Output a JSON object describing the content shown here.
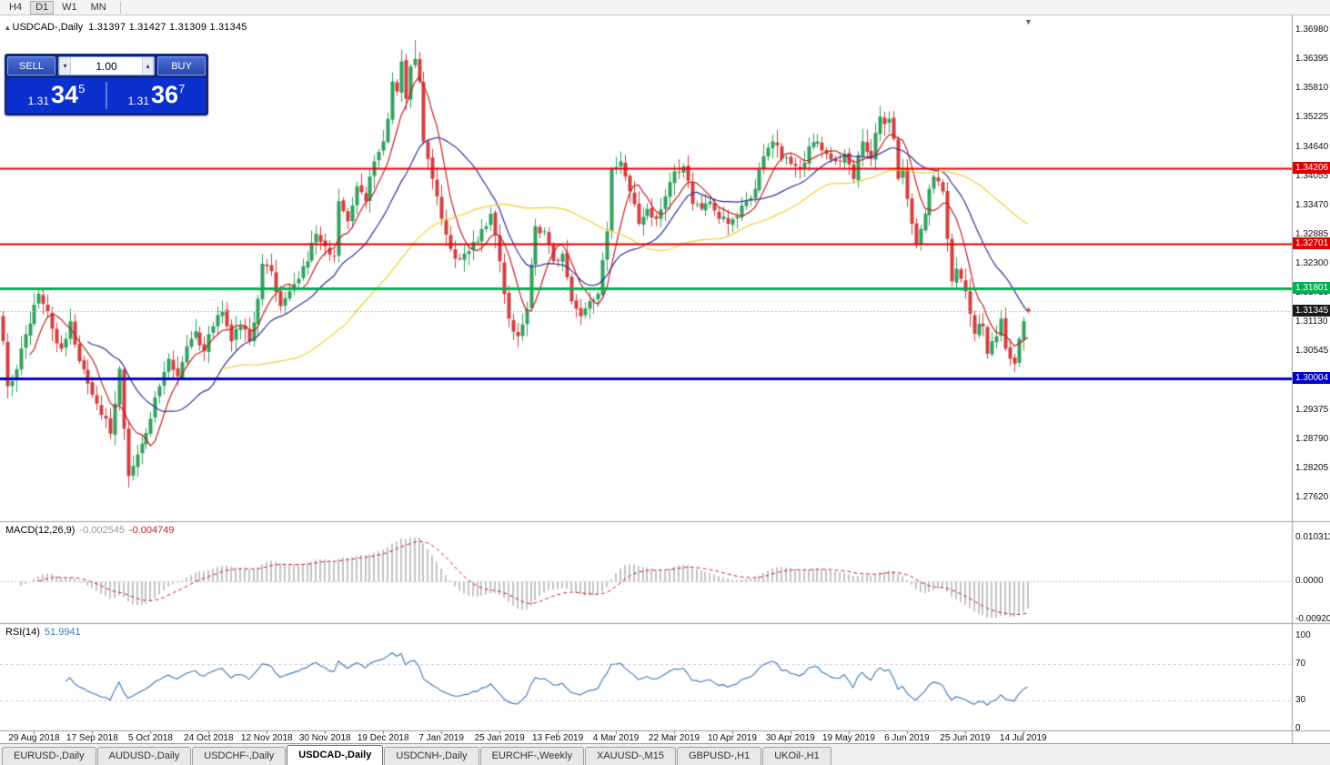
{
  "toolbar": {
    "periods": [
      {
        "label": "H4",
        "active": false
      },
      {
        "label": "D1",
        "active": true
      },
      {
        "label": "W1",
        "active": false
      },
      {
        "label": "MN",
        "active": false
      }
    ]
  },
  "icons": {
    "collapse": "▴",
    "volume_up": "▴",
    "volume_down": "▾",
    "shift_marker": "▼"
  },
  "chart_header": {
    "symbol": "USDCAD-,Daily",
    "ohlc_text": "1.31397 1.31427 1.31309 1.31345"
  },
  "trade_panel": {
    "sell_label": "SELL",
    "buy_label": "BUY",
    "volume": "1.00",
    "sell_price": {
      "prefix": "1.31",
      "big": "34",
      "sup": "5"
    },
    "buy_price": {
      "prefix": "1.31",
      "big": "36",
      "sup": "7"
    }
  },
  "chart_data": {
    "type": "candlestick",
    "title": "USDCAD-,Daily",
    "current_ohlc": {
      "open": 1.31397,
      "high": 1.31427,
      "low": 1.31309,
      "close": 1.31345
    },
    "up_color": "#33a05f",
    "down_color": "#cf4040",
    "candle_count": 230,
    "y_range": {
      "top": 1.3698,
      "bottom": 1.2762
    },
    "y_ticks": [
      "1.36980",
      "1.36395",
      "1.35810",
      "1.35225",
      "1.34640",
      "1.34055",
      "1.33470",
      "1.32885",
      "1.32300",
      "1.31715",
      "1.31130",
      "1.30545",
      "1.29960",
      "1.29375",
      "1.28790",
      "1.28205",
      "1.27620"
    ],
    "x_labels": [
      "29 Aug 2018",
      "17 Sep 2018",
      "5 Oct 2018",
      "24 Oct 2018",
      "12 Nov 2018",
      "30 Nov 2018",
      "19 Dec 2018",
      "7 Jan 2019",
      "25 Jan 2019",
      "13 Feb 2019",
      "4 Mar 2019",
      "22 Mar 2019",
      "10 Apr 2019",
      "30 Apr 2019",
      "19 May 2019",
      "6 Jun 2019",
      "25 Jun 2019",
      "14 Jul 2019"
    ],
    "x_label_first_index": 7,
    "x_label_step": 13,
    "close_waypoints": [
      [
        0,
        1.3075
      ],
      [
        1,
        1.2985
      ],
      [
        2,
        1.2995
      ],
      [
        4,
        1.306
      ],
      [
        6,
        1.311
      ],
      [
        8,
        1.317
      ],
      [
        9,
        1.315
      ],
      [
        11,
        1.31
      ],
      [
        13,
        1.306
      ],
      [
        15,
        1.3115
      ],
      [
        17,
        1.3035
      ],
      [
        19,
        1.299
      ],
      [
        21,
        1.295
      ],
      [
        23,
        1.292
      ],
      [
        24,
        1.289
      ],
      [
        25,
        1.295
      ],
      [
        26,
        1.302
      ],
      [
        27,
        1.29
      ],
      [
        28,
        1.2805
      ],
      [
        29,
        1.2825
      ],
      [
        31,
        1.287
      ],
      [
        33,
        1.292
      ],
      [
        35,
        1.2985
      ],
      [
        37,
        1.304
      ],
      [
        39,
        1.3005
      ],
      [
        41,
        1.3065
      ],
      [
        43,
        1.3095
      ],
      [
        45,
        1.3055
      ],
      [
        47,
        1.3105
      ],
      [
        49,
        1.3135
      ],
      [
        51,
        1.3075
      ],
      [
        53,
        1.3105
      ],
      [
        55,
        1.3075
      ],
      [
        57,
        1.316
      ],
      [
        58,
        1.323
      ],
      [
        60,
        1.3215
      ],
      [
        62,
        1.3145
      ],
      [
        64,
        1.3175
      ],
      [
        66,
        1.32
      ],
      [
        68,
        1.3235
      ],
      [
        70,
        1.329
      ],
      [
        72,
        1.3265
      ],
      [
        74,
        1.3245
      ],
      [
        75,
        1.3355
      ],
      [
        77,
        1.3315
      ],
      [
        79,
        1.3385
      ],
      [
        81,
        1.3355
      ],
      [
        83,
        1.3435
      ],
      [
        85,
        1.3475
      ],
      [
        86,
        1.352
      ],
      [
        87,
        1.3595
      ],
      [
        88,
        1.3575
      ],
      [
        89,
        1.3635
      ],
      [
        90,
        1.356
      ],
      [
        91,
        1.3625
      ],
      [
        92,
        1.364
      ],
      [
        93,
        1.3595
      ],
      [
        94,
        1.3475
      ],
      [
        95,
        1.344
      ],
      [
        96,
        1.34
      ],
      [
        97,
        1.3365
      ],
      [
        98,
        1.332
      ],
      [
        100,
        1.326
      ],
      [
        102,
        1.324
      ],
      [
        104,
        1.3255
      ],
      [
        106,
        1.3275
      ],
      [
        108,
        1.3305
      ],
      [
        109,
        1.333
      ],
      [
        111,
        1.3235
      ],
      [
        113,
        1.312
      ],
      [
        115,
        1.3085
      ],
      [
        117,
        1.314
      ],
      [
        119,
        1.3305
      ],
      [
        121,
        1.3295
      ],
      [
        123,
        1.3235
      ],
      [
        125,
        1.325
      ],
      [
        127,
        1.3155
      ],
      [
        129,
        1.3125
      ],
      [
        131,
        1.3155
      ],
      [
        133,
        1.317
      ],
      [
        135,
        1.3295
      ],
      [
        136,
        1.342
      ],
      [
        138,
        1.3435
      ],
      [
        140,
        1.3375
      ],
      [
        142,
        1.331
      ],
      [
        144,
        1.334
      ],
      [
        146,
        1.332
      ],
      [
        148,
        1.3365
      ],
      [
        150,
        1.3415
      ],
      [
        152,
        1.3425
      ],
      [
        154,
        1.335
      ],
      [
        156,
        1.334
      ],
      [
        158,
        1.3355
      ],
      [
        160,
        1.332
      ],
      [
        162,
        1.331
      ],
      [
        164,
        1.3325
      ],
      [
        166,
        1.3355
      ],
      [
        168,
        1.338
      ],
      [
        170,
        1.3445
      ],
      [
        172,
        1.3475
      ],
      [
        174,
        1.344
      ],
      [
        176,
        1.343
      ],
      [
        178,
        1.342
      ],
      [
        180,
        1.3465
      ],
      [
        182,
        1.3475
      ],
      [
        184,
        1.345
      ],
      [
        186,
        1.3435
      ],
      [
        188,
        1.345
      ],
      [
        190,
        1.34
      ],
      [
        192,
        1.3475
      ],
      [
        194,
        1.344
      ],
      [
        196,
        1.3525
      ],
      [
        197,
        1.351
      ],
      [
        198,
        1.352
      ],
      [
        199,
        1.348
      ],
      [
        200,
        1.34
      ],
      [
        201,
        1.342
      ],
      [
        202,
        1.336
      ],
      [
        203,
        1.331
      ],
      [
        204,
        1.327
      ],
      [
        205,
        1.33
      ],
      [
        206,
        1.333
      ],
      [
        207,
        1.338
      ],
      [
        208,
        1.3405
      ],
      [
        209,
        1.3395
      ],
      [
        210,
        1.3375
      ],
      [
        211,
        1.328
      ],
      [
        212,
        1.3195
      ],
      [
        213,
        1.322
      ],
      [
        214,
        1.32
      ],
      [
        215,
        1.3175
      ],
      [
        216,
        1.313
      ],
      [
        217,
        1.309
      ],
      [
        218,
        1.311
      ],
      [
        219,
        1.3105
      ],
      [
        220,
        1.305
      ],
      [
        221,
        1.3075
      ],
      [
        222,
        1.3085
      ],
      [
        223,
        1.312
      ],
      [
        224,
        1.306
      ],
      [
        225,
        1.304
      ],
      [
        226,
        1.303
      ],
      [
        227,
        1.308
      ],
      [
        228,
        1.3115
      ],
      [
        229,
        1.31345
      ]
    ],
    "extremes": {
      "low": {
        "index": 28,
        "price": 1.2782
      },
      "high": {
        "index": 92,
        "price": 1.3678
      }
    },
    "horizontal_lines": [
      {
        "price": 1.34206,
        "label": "1.34206",
        "color": "#e00000",
        "width": 2
      },
      {
        "price": 1.32701,
        "label": "1.32701",
        "color": "#e00000",
        "width": 2
      },
      {
        "price": 1.31801,
        "label": "1.31801",
        "color": "#00b050",
        "width": 3
      },
      {
        "price": 1.30004,
        "label": "1.30004",
        "color": "#0000cc",
        "width": 3
      }
    ],
    "current_price_line": {
      "price": 1.31345,
      "label": "1.31345",
      "tag_color": "#1a1a1a",
      "line_color": "#b9b9b9"
    },
    "moving_averages": [
      {
        "period": 7,
        "color": "#cc2020"
      },
      {
        "period": 20,
        "color": "#32329b"
      },
      {
        "period": 50,
        "color": "#efcf2f"
      }
    ],
    "indicators": [
      {
        "name": "MACD",
        "label": "MACD(12,26,9)",
        "values": [
          "-0.002545",
          "-0.004749"
        ],
        "params": {
          "fast": 12,
          "slow": 26,
          "signal": 9
        },
        "y_ticks": [
          "0.010311",
          "0.0000",
          "-0.009203"
        ],
        "y_top": 0.010311,
        "y_bottom": -0.009203,
        "histogram_color": "#c4c4c4",
        "signal_color": "#cc2222"
      },
      {
        "name": "RSI",
        "label": "RSI(14)",
        "values": [
          "51.9941"
        ],
        "period": 14,
        "y_ticks": [
          "100",
          "70",
          "30",
          "0"
        ],
        "levels": [
          70,
          30
        ],
        "line_color": "#3a79b8"
      }
    ]
  },
  "tabs": {
    "active_index": 3,
    "items": [
      "EURUSD-,Daily",
      "AUDUSD-,Daily",
      "USDCHF-,Daily",
      "USDCAD-,Daily",
      "USDCNH-,Daily",
      "EURCHF-,Weekly",
      "XAUUSD-,M15",
      "GBPUSD-,H1",
      "UKOil-,H1"
    ]
  }
}
